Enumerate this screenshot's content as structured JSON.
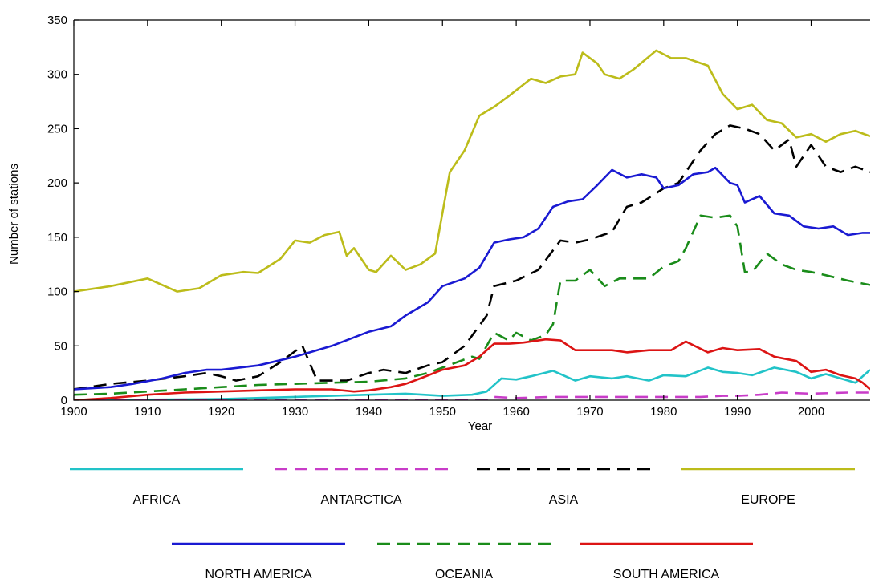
{
  "chart_data": {
    "type": "line",
    "title": "",
    "xlabel": "Year",
    "ylabel": "Number of stations",
    "xlim": [
      1900,
      2008
    ],
    "ylim": [
      0,
      350
    ],
    "x_ticks": [
      1900,
      1910,
      1920,
      1930,
      1940,
      1950,
      1960,
      1970,
      1980,
      1990,
      2000
    ],
    "y_ticks": [
      0,
      50,
      100,
      150,
      200,
      250,
      300,
      350
    ],
    "grid": false,
    "legend_position": "bottom",
    "series": [
      {
        "name": "AFRICA",
        "color": "#22c3c8",
        "dash": "solid",
        "points": [
          [
            1900,
            0
          ],
          [
            1920,
            1
          ],
          [
            1930,
            3
          ],
          [
            1940,
            5
          ],
          [
            1945,
            6
          ],
          [
            1950,
            4
          ],
          [
            1954,
            5
          ],
          [
            1956,
            8
          ],
          [
            1958,
            20
          ],
          [
            1960,
            19
          ],
          [
            1962,
            22
          ],
          [
            1965,
            27
          ],
          [
            1968,
            18
          ],
          [
            1970,
            22
          ],
          [
            1973,
            20
          ],
          [
            1975,
            22
          ],
          [
            1978,
            18
          ],
          [
            1980,
            23
          ],
          [
            1983,
            22
          ],
          [
            1986,
            30
          ],
          [
            1988,
            26
          ],
          [
            1990,
            25
          ],
          [
            1992,
            23
          ],
          [
            1995,
            30
          ],
          [
            1998,
            26
          ],
          [
            2000,
            20
          ],
          [
            2002,
            24
          ],
          [
            2004,
            20
          ],
          [
            2006,
            16
          ],
          [
            2008,
            28
          ]
        ]
      },
      {
        "name": "ANTARCTICA",
        "color": "#c83cc8",
        "dash": "dashed",
        "points": [
          [
            1900,
            0
          ],
          [
            1956,
            0
          ],
          [
            1957,
            3
          ],
          [
            1960,
            2
          ],
          [
            1965,
            3
          ],
          [
            1970,
            3
          ],
          [
            1975,
            3
          ],
          [
            1980,
            3
          ],
          [
            1985,
            3
          ],
          [
            1988,
            4
          ],
          [
            1990,
            4
          ],
          [
            1993,
            5
          ],
          [
            1996,
            7
          ],
          [
            2000,
            6
          ],
          [
            2005,
            7
          ],
          [
            2008,
            7
          ]
        ]
      },
      {
        "name": "ASIA",
        "color": "#000000",
        "dash": "dashed",
        "points": [
          [
            1900,
            10
          ],
          [
            1905,
            15
          ],
          [
            1910,
            18
          ],
          [
            1915,
            22
          ],
          [
            1918,
            25
          ],
          [
            1920,
            22
          ],
          [
            1922,
            18
          ],
          [
            1925,
            22
          ],
          [
            1928,
            35
          ],
          [
            1931,
            50
          ],
          [
            1933,
            18
          ],
          [
            1935,
            18
          ],
          [
            1937,
            18
          ],
          [
            1940,
            25
          ],
          [
            1942,
            28
          ],
          [
            1945,
            25
          ],
          [
            1948,
            32
          ],
          [
            1950,
            35
          ],
          [
            1953,
            50
          ],
          [
            1956,
            78
          ],
          [
            1957,
            105
          ],
          [
            1960,
            110
          ],
          [
            1963,
            120
          ],
          [
            1966,
            147
          ],
          [
            1968,
            145
          ],
          [
            1970,
            148
          ],
          [
            1973,
            155
          ],
          [
            1975,
            178
          ],
          [
            1977,
            182
          ],
          [
            1980,
            195
          ],
          [
            1982,
            200
          ],
          [
            1985,
            230
          ],
          [
            1987,
            245
          ],
          [
            1989,
            253
          ],
          [
            1991,
            250
          ],
          [
            1993,
            245
          ],
          [
            1995,
            230
          ],
          [
            1997,
            240
          ],
          [
            1998,
            215
          ],
          [
            2000,
            235
          ],
          [
            2002,
            215
          ],
          [
            2004,
            210
          ],
          [
            2006,
            215
          ],
          [
            2008,
            210
          ]
        ]
      },
      {
        "name": "EUROPE",
        "color": "#bcbc1a",
        "dash": "solid",
        "points": [
          [
            1900,
            100
          ],
          [
            1905,
            105
          ],
          [
            1910,
            112
          ],
          [
            1914,
            100
          ],
          [
            1917,
            103
          ],
          [
            1920,
            115
          ],
          [
            1923,
            118
          ],
          [
            1925,
            117
          ],
          [
            1928,
            130
          ],
          [
            1930,
            147
          ],
          [
            1932,
            145
          ],
          [
            1934,
            152
          ],
          [
            1936,
            155
          ],
          [
            1937,
            133
          ],
          [
            1938,
            140
          ],
          [
            1940,
            120
          ],
          [
            1941,
            118
          ],
          [
            1943,
            133
          ],
          [
            1945,
            120
          ],
          [
            1947,
            125
          ],
          [
            1949,
            135
          ],
          [
            1951,
            210
          ],
          [
            1953,
            230
          ],
          [
            1955,
            262
          ],
          [
            1957,
            270
          ],
          [
            1959,
            280
          ],
          [
            1962,
            296
          ],
          [
            1964,
            292
          ],
          [
            1966,
            298
          ],
          [
            1968,
            300
          ],
          [
            1969,
            320
          ],
          [
            1971,
            310
          ],
          [
            1972,
            300
          ],
          [
            1974,
            296
          ],
          [
            1976,
            305
          ],
          [
            1979,
            322
          ],
          [
            1981,
            315
          ],
          [
            1983,
            315
          ],
          [
            1986,
            308
          ],
          [
            1988,
            282
          ],
          [
            1989,
            275
          ],
          [
            1990,
            268
          ],
          [
            1992,
            272
          ],
          [
            1994,
            258
          ],
          [
            1996,
            255
          ],
          [
            1998,
            242
          ],
          [
            2000,
            245
          ],
          [
            2002,
            238
          ],
          [
            2004,
            245
          ],
          [
            2006,
            248
          ],
          [
            2008,
            243
          ]
        ]
      },
      {
        "name": "NORTH AMERICA",
        "color": "#1a1ad2",
        "dash": "solid",
        "points": [
          [
            1900,
            10
          ],
          [
            1905,
            12
          ],
          [
            1908,
            15
          ],
          [
            1912,
            20
          ],
          [
            1915,
            25
          ],
          [
            1918,
            28
          ],
          [
            1920,
            28
          ],
          [
            1925,
            32
          ],
          [
            1930,
            40
          ],
          [
            1935,
            50
          ],
          [
            1940,
            63
          ],
          [
            1943,
            68
          ],
          [
            1945,
            78
          ],
          [
            1948,
            90
          ],
          [
            1950,
            105
          ],
          [
            1953,
            112
          ],
          [
            1955,
            122
          ],
          [
            1957,
            145
          ],
          [
            1959,
            148
          ],
          [
            1961,
            150
          ],
          [
            1963,
            158
          ],
          [
            1965,
            178
          ],
          [
            1967,
            183
          ],
          [
            1969,
            185
          ],
          [
            1971,
            198
          ],
          [
            1973,
            212
          ],
          [
            1975,
            205
          ],
          [
            1977,
            208
          ],
          [
            1979,
            205
          ],
          [
            1980,
            195
          ],
          [
            1982,
            198
          ],
          [
            1984,
            208
          ],
          [
            1986,
            210
          ],
          [
            1987,
            214
          ],
          [
            1989,
            200
          ],
          [
            1990,
            198
          ],
          [
            1991,
            182
          ],
          [
            1993,
            188
          ],
          [
            1995,
            172
          ],
          [
            1997,
            170
          ],
          [
            1999,
            160
          ],
          [
            2001,
            158
          ],
          [
            2003,
            160
          ],
          [
            2005,
            152
          ],
          [
            2007,
            154
          ],
          [
            2008,
            154
          ]
        ]
      },
      {
        "name": "OCEANIA",
        "color": "#1a8c1a",
        "dash": "dashed",
        "points": [
          [
            1900,
            5
          ],
          [
            1905,
            6
          ],
          [
            1910,
            8
          ],
          [
            1915,
            10
          ],
          [
            1920,
            12
          ],
          [
            1925,
            14
          ],
          [
            1930,
            15
          ],
          [
            1935,
            16
          ],
          [
            1940,
            17
          ],
          [
            1945,
            20
          ],
          [
            1948,
            25
          ],
          [
            1950,
            30
          ],
          [
            1952,
            35
          ],
          [
            1954,
            40
          ],
          [
            1955,
            38
          ],
          [
            1957,
            62
          ],
          [
            1959,
            55
          ],
          [
            1960,
            62
          ],
          [
            1962,
            55
          ],
          [
            1964,
            60
          ],
          [
            1965,
            70
          ],
          [
            1966,
            110
          ],
          [
            1968,
            110
          ],
          [
            1970,
            120
          ],
          [
            1972,
            105
          ],
          [
            1974,
            112
          ],
          [
            1976,
            112
          ],
          [
            1978,
            112
          ],
          [
            1980,
            123
          ],
          [
            1982,
            128
          ],
          [
            1983,
            140
          ],
          [
            1985,
            170
          ],
          [
            1987,
            168
          ],
          [
            1989,
            170
          ],
          [
            1990,
            160
          ],
          [
            1991,
            118
          ],
          [
            1992,
            118
          ],
          [
            1994,
            135
          ],
          [
            1996,
            125
          ],
          [
            1998,
            120
          ],
          [
            2000,
            118
          ],
          [
            2002,
            115
          ],
          [
            2005,
            110
          ],
          [
            2008,
            106
          ]
        ]
      },
      {
        "name": "SOUTH AMERICA",
        "color": "#dc1414",
        "dash": "solid",
        "points": [
          [
            1900,
            0
          ],
          [
            1905,
            2
          ],
          [
            1910,
            5
          ],
          [
            1915,
            7
          ],
          [
            1920,
            8
          ],
          [
            1925,
            9
          ],
          [
            1930,
            10
          ],
          [
            1935,
            10
          ],
          [
            1938,
            8
          ],
          [
            1940,
            9
          ],
          [
            1943,
            12
          ],
          [
            1945,
            15
          ],
          [
            1947,
            20
          ],
          [
            1950,
            28
          ],
          [
            1953,
            32
          ],
          [
            1955,
            40
          ],
          [
            1957,
            52
          ],
          [
            1959,
            52
          ],
          [
            1961,
            53
          ],
          [
            1964,
            56
          ],
          [
            1966,
            55
          ],
          [
            1968,
            46
          ],
          [
            1970,
            46
          ],
          [
            1973,
            46
          ],
          [
            1975,
            44
          ],
          [
            1978,
            46
          ],
          [
            1981,
            46
          ],
          [
            1983,
            54
          ],
          [
            1986,
            44
          ],
          [
            1988,
            48
          ],
          [
            1990,
            46
          ],
          [
            1993,
            47
          ],
          [
            1995,
            40
          ],
          [
            1998,
            36
          ],
          [
            2000,
            26
          ],
          [
            2002,
            28
          ],
          [
            2004,
            23
          ],
          [
            2006,
            20
          ],
          [
            2007,
            16
          ],
          [
            2008,
            10
          ]
        ]
      }
    ]
  }
}
